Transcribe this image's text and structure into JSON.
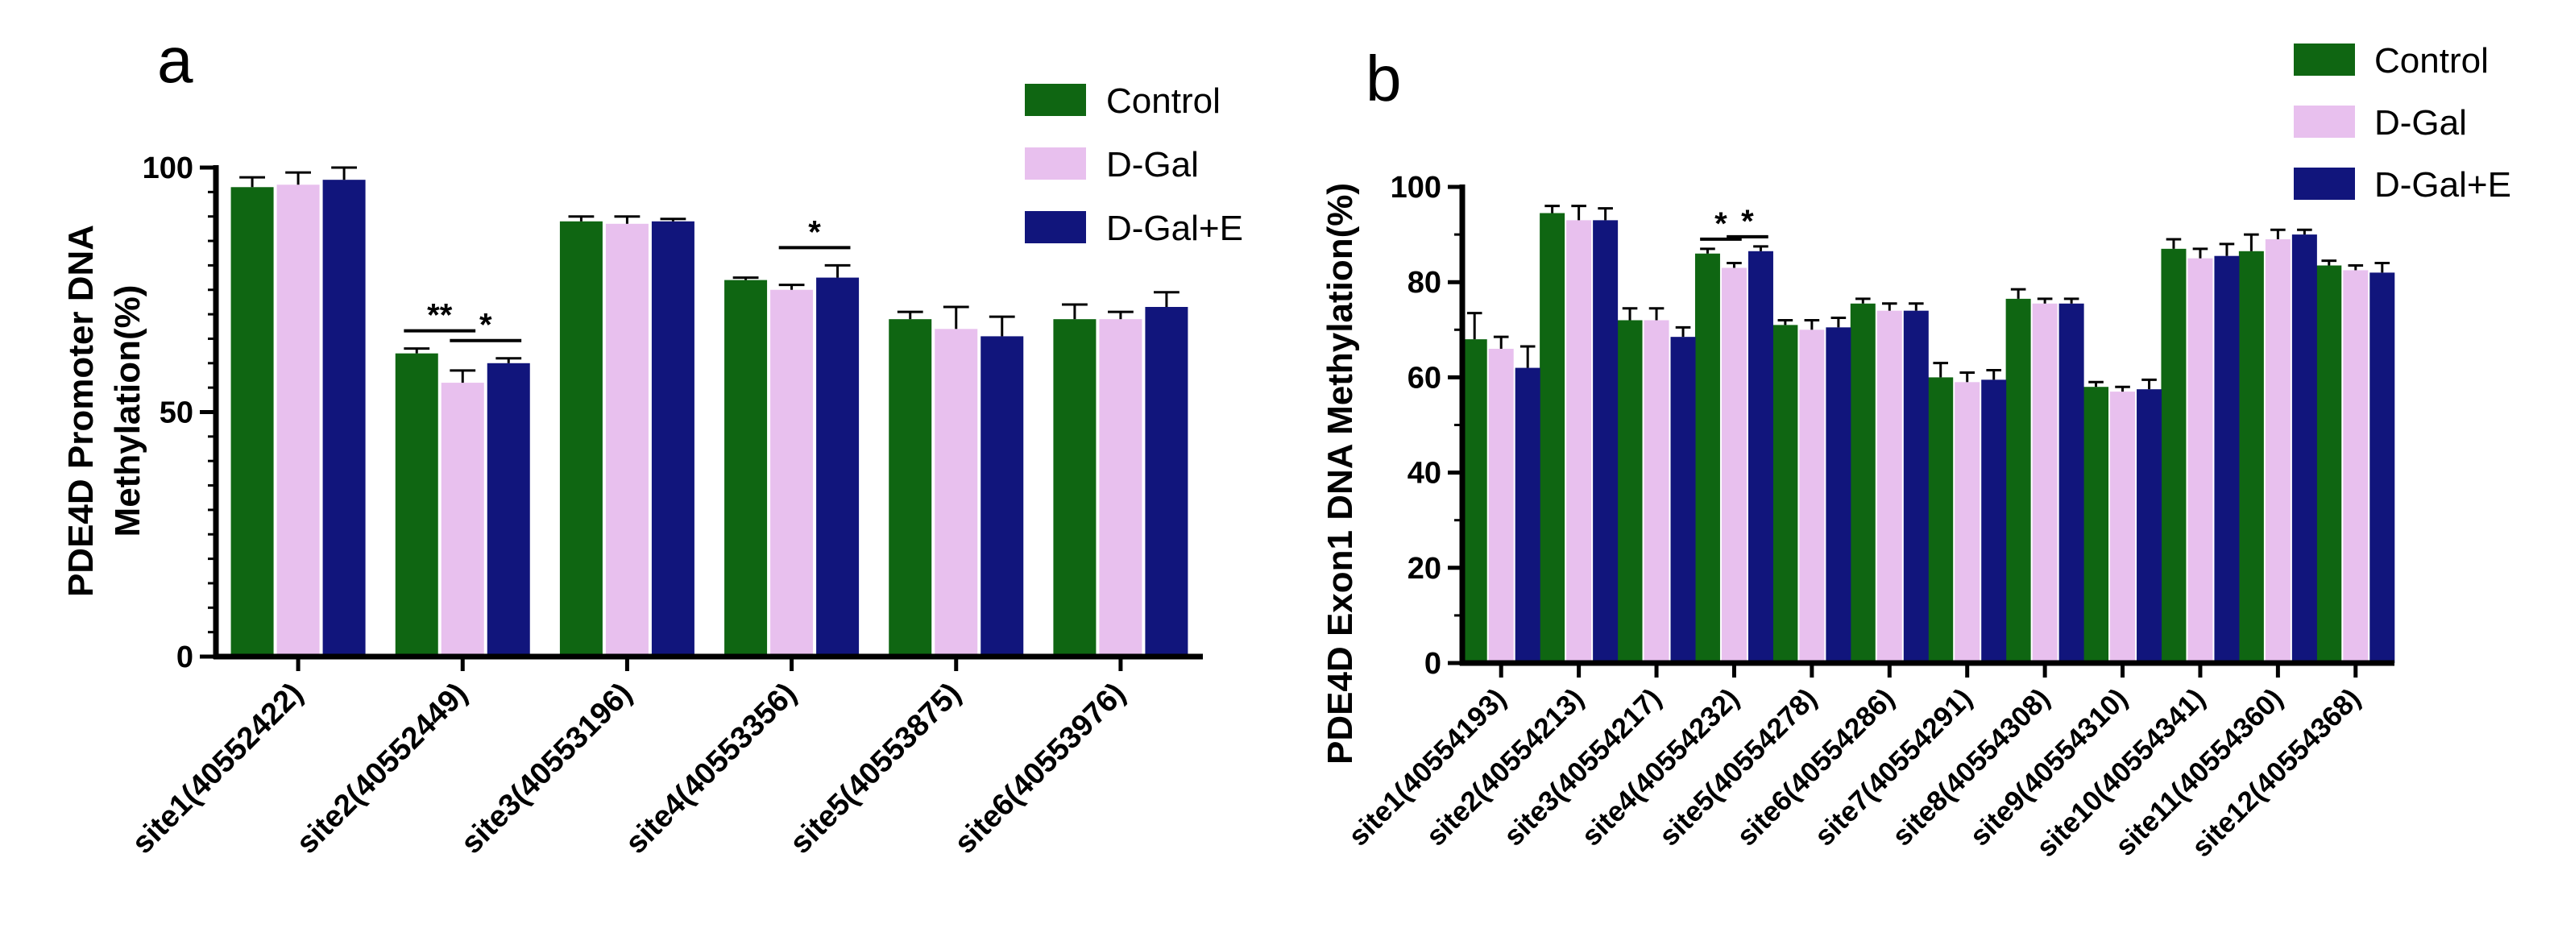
{
  "chart_data": [
    {
      "panel": "a",
      "type": "bar",
      "ylabel": "PDE4D Promoter  DNA Methylation(%)",
      "ylabel_lines": [
        "PDE4D Promoter  DNA",
        "Methylation(%)"
      ],
      "ylim": [
        0,
        100
      ],
      "yticks": [
        0,
        50,
        100
      ],
      "categories": [
        "site1(40552422)",
        "site2(40552449)",
        "site3(40553196)",
        "site4(40553356)",
        "site5(40553875)",
        "site6(40553976)"
      ],
      "series": [
        {
          "name": "Control",
          "color": "#0f6612",
          "values": [
            96,
            62,
            89,
            77,
            69,
            69
          ],
          "errors": [
            2,
            1,
            1,
            0.5,
            1.5,
            3
          ]
        },
        {
          "name": "D-Gal",
          "color": "#e8c0ee",
          "values": [
            96.5,
            56,
            88.5,
            75,
            67,
            69
          ],
          "errors": [
            2.5,
            2.5,
            1.5,
            1,
            4.5,
            1.5
          ]
        },
        {
          "name": "D-Gal+E",
          "color": "#11157c",
          "values": [
            97.5,
            60,
            89,
            77.5,
            65.5,
            71.5
          ],
          "errors": [
            2.5,
            1,
            0.5,
            2.5,
            4,
            3
          ]
        }
      ],
      "legend": [
        "Control",
        "D-Gal",
        "D-Gal+E"
      ],
      "legend_position": "top-right",
      "annotations": [
        {
          "text": "**",
          "category": 1,
          "between": [
            0,
            1
          ]
        },
        {
          "text": "*",
          "category": 1,
          "between": [
            1,
            2
          ]
        },
        {
          "text": "*",
          "category": 3,
          "between": [
            1,
            2
          ]
        }
      ]
    },
    {
      "panel": "b",
      "type": "bar",
      "ylabel": "PDE4D Exon1  DNA Methylation(%)",
      "ylim": [
        0,
        100
      ],
      "yticks": [
        0,
        20,
        40,
        60,
        80,
        100
      ],
      "categories": [
        "site1(40554193)",
        "site2(40554213)",
        "site3(40554217)",
        "site4(40554232)",
        "site5(40554278)",
        "site6(40554286)",
        "site7(40554291)",
        "site8(40554308)",
        "site9(40554310)",
        "site10(40554341)",
        "site11(40554360)",
        "site12(40554368)"
      ],
      "series": [
        {
          "name": "Control",
          "color": "#0f6612",
          "values": [
            68,
            94.5,
            72,
            86,
            71,
            75.5,
            60,
            76.5,
            58,
            87,
            86.5,
            83.5
          ],
          "errors": [
            5.5,
            1.5,
            2.5,
            1,
            1,
            1,
            3,
            2,
            1,
            2,
            3.5,
            1
          ]
        },
        {
          "name": "D-Gal",
          "color": "#e8c0ee",
          "values": [
            66,
            93,
            72,
            83,
            70,
            74,
            59,
            75.5,
            57,
            85,
            89,
            82.5
          ],
          "errors": [
            2.5,
            3,
            2.5,
            1,
            2,
            1.5,
            2,
            1,
            1,
            2,
            2,
            1
          ]
        },
        {
          "name": "D-Gal+E",
          "color": "#11157c",
          "values": [
            62,
            93,
            68.5,
            86.5,
            70.5,
            74,
            59.5,
            75.5,
            57.5,
            85.5,
            90,
            82
          ],
          "errors": [
            4.5,
            2.5,
            2,
            1,
            2,
            1.5,
            2,
            1,
            2,
            2.5,
            1,
            2
          ]
        }
      ],
      "legend": [
        "Control",
        "D-Gal",
        "D-Gal+E"
      ],
      "legend_position": "top-right",
      "annotations": [
        {
          "text": "*",
          "category": 3,
          "between": [
            0,
            1
          ]
        },
        {
          "text": "*",
          "category": 3,
          "between": [
            1,
            2
          ]
        }
      ]
    }
  ]
}
